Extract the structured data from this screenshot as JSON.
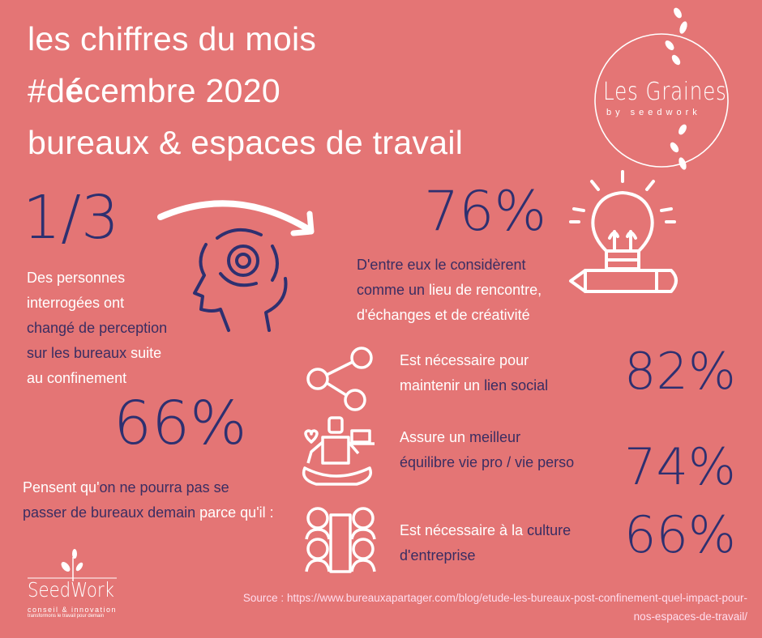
{
  "header": {
    "line1": "les chiffres du mois",
    "line2_prefix": "#d",
    "line2_bold": "é",
    "line2_suffix": "cembre 2020",
    "line3": "bureaux & espaces de travail"
  },
  "logo_top": {
    "name": "Les Graines",
    "tagline": "by seedwork"
  },
  "logo_bottom": {
    "name": "SeedWork",
    "tagline": "conseil & innovation",
    "subtagline": "transformons le travail pour demain"
  },
  "colors": {
    "background": "#e47575",
    "accent_navy": "#2e3070",
    "text_navy": "#3a2d62",
    "text_white": "#ffffff"
  },
  "stat_left_top": {
    "value": "1/3",
    "icon": "head-gear-icon",
    "lines": [
      [
        {
          "t": "Des personnes",
          "c": "w"
        }
      ],
      [
        {
          "t": "interrogées ont",
          "c": "w"
        }
      ],
      [
        {
          "t": "changé de perception",
          "c": "n"
        }
      ],
      [
        {
          "t": "sur les bureaux",
          "c": "n"
        },
        {
          "t": " suite",
          "c": "w"
        }
      ],
      [
        {
          "t": "au confinement",
          "c": "w"
        }
      ]
    ]
  },
  "stat_left_bottom": {
    "value": "66%",
    "lines": [
      [
        {
          "t": "Pensent qu'",
          "c": "w"
        },
        {
          "t": "on ne pourra pas se",
          "c": "n"
        }
      ],
      [
        {
          "t": "passer de bureaux demain",
          "c": "n"
        },
        {
          "t": " parce qu'il :",
          "c": "w"
        }
      ]
    ]
  },
  "stat_right_top": {
    "value": "76%",
    "icon": "lightbulb-pencil-icon",
    "lines": [
      [
        {
          "t": "D'entre eux le considèrent",
          "c": "n"
        }
      ],
      [
        {
          "t": "comme un",
          "c": "n"
        },
        {
          "t": " lieu de rencontre,",
          "c": "w"
        }
      ],
      [
        {
          "t": "d'échanges et de créativité",
          "c": "w"
        }
      ]
    ]
  },
  "reasons": [
    {
      "icon": "share-network-icon",
      "value": "82%",
      "lines": [
        [
          {
            "t": "Est nécessaire pour",
            "c": "w"
          }
        ],
        [
          {
            "t": "maintenir un ",
            "c": "w"
          },
          {
            "t": "lien social",
            "c": "n"
          }
        ]
      ]
    },
    {
      "icon": "meditation-balance-icon",
      "value": "74%",
      "lines": [
        [
          {
            "t": "Assure un ",
            "c": "w"
          },
          {
            "t": "meilleur",
            "c": "n"
          }
        ],
        [
          {
            "t": "équilibre vie pro / vie perso",
            "c": "n"
          }
        ]
      ]
    },
    {
      "icon": "team-building-icon",
      "value": "66%",
      "lines": [
        [
          {
            "t": "Est nécessaire à la ",
            "c": "w"
          },
          {
            "t": "culture",
            "c": "n"
          }
        ],
        [
          {
            "t": "d'entreprise",
            "c": "n"
          }
        ]
      ]
    }
  ],
  "source": {
    "label": "Source :",
    "url_line1": "https://www.bureauxapartager.com/blog/etude-les-bureaux-post-confinement-quel-impact-pour-",
    "url_line2": "nos-espaces-de-travail/"
  }
}
